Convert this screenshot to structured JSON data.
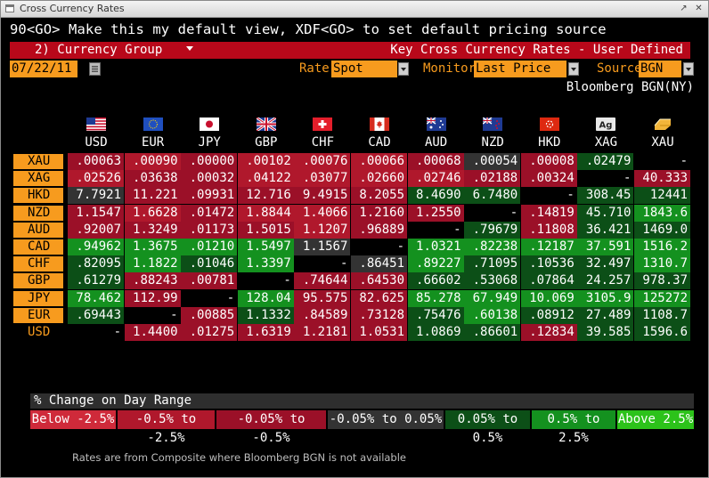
{
  "window": {
    "title": "Cross Currency Rates",
    "buttons": [
      "↗",
      "✕"
    ]
  },
  "command_line": "90<GO> Make this my default view, XDF<GO> to set default pricing source",
  "header": {
    "group_menu": "2) Currency Group",
    "right_title": "Key Cross Currency Rates - User Defined"
  },
  "controls": {
    "date": "07/22/11",
    "rate_label": "Rate",
    "rate_value": "Spot",
    "monitor_label": "Monitor",
    "monitor_value": "Last Price w/",
    "source_label": "Source",
    "source_value": "BGN"
  },
  "source_caption": "Bloomberg BGN(NY)",
  "columns": [
    {
      "code": "USD",
      "flag": "us-flag-icon"
    },
    {
      "code": "EUR",
      "flag": "eu-flag-icon"
    },
    {
      "code": "JPY",
      "flag": "jp-flag-icon"
    },
    {
      "code": "GBP",
      "flag": "gb-flag-icon"
    },
    {
      "code": "CHF",
      "flag": "ch-flag-icon"
    },
    {
      "code": "CAD",
      "flag": "ca-flag-icon"
    },
    {
      "code": "AUD",
      "flag": "au-flag-icon"
    },
    {
      "code": "NZD",
      "flag": "nz-flag-icon"
    },
    {
      "code": "HKD",
      "flag": "hk-flag-icon"
    },
    {
      "code": "XAG",
      "flag": "silver-icon",
      "icon_text": "Ag"
    },
    {
      "code": "XAU",
      "flag": "gold-icon"
    }
  ],
  "rows": [
    {
      "code": "XAU",
      "cells": [
        ".00063",
        ".00090",
        ".00000",
        ".00102",
        ".00076",
        ".00066",
        ".00068",
        ".00054",
        ".00008",
        ".02479",
        "-"
      ]
    },
    {
      "code": "XAG",
      "cells": [
        ".02526",
        ".03638",
        ".00032",
        ".04122",
        ".03077",
        ".02660",
        ".02746",
        ".02188",
        ".00324",
        "-",
        "40.333"
      ]
    },
    {
      "code": "HKD",
      "cells": [
        "7.7921",
        "11.221",
        ".09931",
        "12.716",
        "9.4915",
        "8.2055",
        "8.4690",
        "6.7480",
        "-",
        "308.45",
        "12441"
      ]
    },
    {
      "code": "NZD",
      "cells": [
        "1.1547",
        "1.6628",
        ".01472",
        "1.8844",
        "1.4066",
        "1.2160",
        "1.2550",
        "-",
        ".14819",
        "45.710",
        "1843.6"
      ]
    },
    {
      "code": "AUD",
      "cells": [
        ".92007",
        "1.3249",
        ".01173",
        "1.5015",
        "1.1207",
        ".96889",
        "-",
        ".79679",
        ".11808",
        "36.421",
        "1469.0"
      ]
    },
    {
      "code": "CAD",
      "cells": [
        ".94962",
        "1.3675",
        ".01210",
        "1.5497",
        "1.1567",
        "-",
        "1.0321",
        ".82238",
        ".12187",
        "37.591",
        "1516.2"
      ]
    },
    {
      "code": "CHF",
      "cells": [
        ".82095",
        "1.1822",
        ".01046",
        "1.3397",
        "-",
        ".86451",
        ".89227",
        ".71095",
        ".10536",
        "32.497",
        "1310.7"
      ]
    },
    {
      "code": "GBP",
      "cells": [
        ".61279",
        ".88243",
        ".00781",
        "-",
        ".74644",
        ".64530",
        ".66602",
        ".53068",
        ".07864",
        "24.257",
        "978.37"
      ]
    },
    {
      "code": "JPY",
      "cells": [
        "78.462",
        "112.99",
        "-",
        "128.04",
        "95.575",
        "82.625",
        "85.278",
        "67.949",
        "10.069",
        "3105.9",
        "125272"
      ]
    },
    {
      "code": "EUR",
      "cells": [
        ".69443",
        "-",
        ".00885",
        "1.1332",
        ".84589",
        ".73128",
        ".75476",
        ".60138",
        ".08912",
        "27.489",
        "1108.7"
      ]
    },
    {
      "code": "USD",
      "cells": [
        "-",
        "1.4400",
        ".01275",
        "1.6319",
        "1.2181",
        "1.0531",
        "1.0869",
        ".86601",
        ".12834",
        "39.585",
        "1596.6"
      ]
    }
  ],
  "legend": {
    "title": "% Change on Day Range",
    "items": [
      {
        "label": "Below -2.5%",
        "color": "#cf2a3a"
      },
      {
        "label": "-0.5% to -2.5%",
        "color": "#b0182c"
      },
      {
        "label": "-0.05% to -0.5%",
        "color": "#9b1028"
      },
      {
        "label": "-0.05% to 0.05%",
        "color": "#333333"
      },
      {
        "label": "0.05% to 0.5%",
        "color": "#0c4f17"
      },
      {
        "label": "0.5% to 2.5%",
        "color": "#14911f"
      },
      {
        "label": "Above 2.5%",
        "color": "#2cc21a"
      }
    ]
  },
  "footnote": "Rates are from Composite where Bloomberg BGN is not available",
  "colors": {
    "accent_orange": "#f79b1e",
    "header_red": "#b8081a"
  }
}
